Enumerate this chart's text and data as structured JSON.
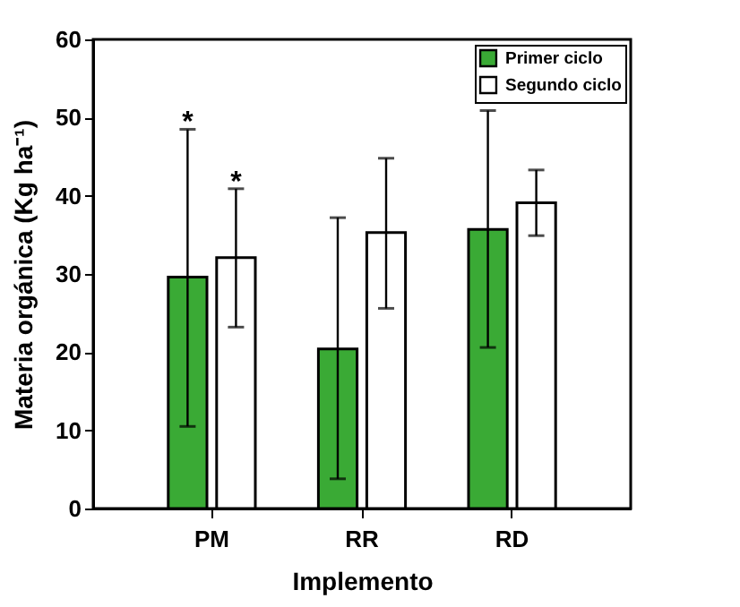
{
  "chart_data": {
    "type": "bar",
    "xlabel": "Implemento",
    "ylabel": "Materia orgánica (Kg ha⁻¹)",
    "categories": [
      "PM",
      "RR",
      "RD"
    ],
    "series": [
      {
        "name": "Primer ciclo",
        "color": "#3aaa35",
        "values": [
          29.6,
          20.4,
          35.7
        ],
        "errors": [
          [
            10.5,
            48.5
          ],
          [
            3.8,
            37.2
          ],
          [
            20.6,
            50.9
          ]
        ]
      },
      {
        "name": "Segundo ciclo",
        "color": "#ffffff",
        "values": [
          32.1,
          35.3,
          39.1
        ],
        "errors": [
          [
            23.2,
            40.9
          ],
          [
            25.6,
            44.8
          ],
          [
            34.9,
            43.3
          ]
        ]
      }
    ],
    "annotations": [
      "*",
      "*"
    ],
    "ylim": [
      0,
      60
    ],
    "yticks": [
      0,
      10,
      20,
      30,
      40,
      50,
      60
    ],
    "grid": false,
    "legend": "top right"
  }
}
